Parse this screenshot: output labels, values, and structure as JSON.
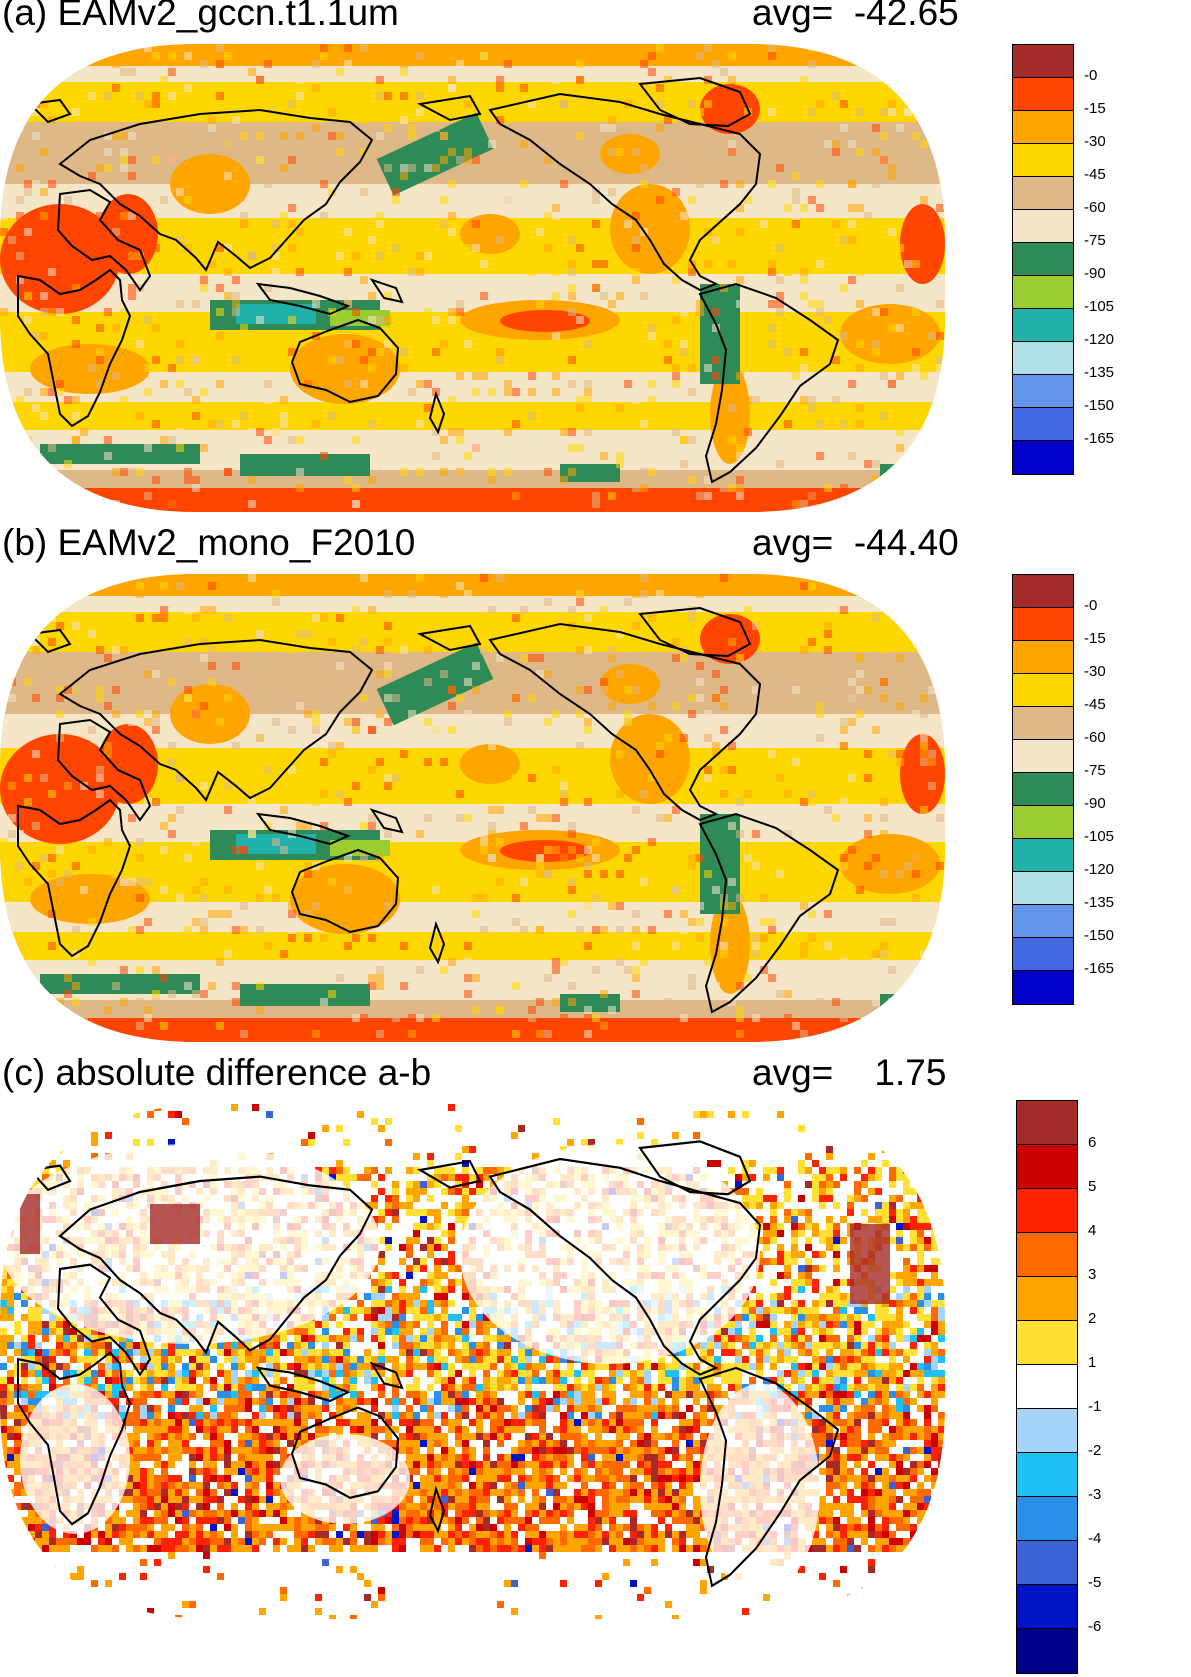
{
  "panels": [
    {
      "id": "a",
      "title": "(a) EAMv2_gccn.t1.1um",
      "avg_label": "avg=",
      "avg_value": "-42.65",
      "colorbar": {
        "labels": [
          "-0",
          "-15",
          "-30",
          "-45",
          "-60",
          "-75",
          "-90",
          "-105",
          "-120",
          "-135",
          "-150",
          "-165"
        ],
        "colors": [
          "#a52a2a",
          "#ff4500",
          "#ffa500",
          "#ffd700",
          "#deb887",
          "#f5e6c8",
          "#2e8b57",
          "#9acd32",
          "#20b2aa",
          "#b0e0e6",
          "#6495ed",
          "#4169e1",
          "#0000cd"
        ]
      }
    },
    {
      "id": "b",
      "title": "(b) EAMv2_mono_F2010",
      "avg_label": "avg=",
      "avg_value": "-44.40",
      "colorbar": {
        "labels": [
          "-0",
          "-15",
          "-30",
          "-45",
          "-60",
          "-75",
          "-90",
          "-105",
          "-120",
          "-135",
          "-150",
          "-165"
        ],
        "colors": [
          "#a52a2a",
          "#ff4500",
          "#ffa500",
          "#ffd700",
          "#deb887",
          "#f5e6c8",
          "#2e8b57",
          "#9acd32",
          "#20b2aa",
          "#b0e0e6",
          "#6495ed",
          "#4169e1",
          "#0000cd"
        ]
      }
    },
    {
      "id": "c",
      "title": "(c) absolute difference a-b",
      "avg_label": "avg=",
      "avg_value": "1.75",
      "colorbar": {
        "labels": [
          "6",
          "5",
          "4",
          "3",
          "2",
          "1",
          "-1",
          "-2",
          "-3",
          "-4",
          "-5",
          "-6"
        ],
        "colors": [
          "#a52a2a",
          "#cc0000",
          "#ff2200",
          "#ff6a00",
          "#ffa500",
          "#ffe033",
          "#ffffff",
          "#a6d4fa",
          "#1ec0f5",
          "#2a8fe8",
          "#3a63d6",
          "#0014c8",
          "#00008b"
        ]
      }
    }
  ]
}
